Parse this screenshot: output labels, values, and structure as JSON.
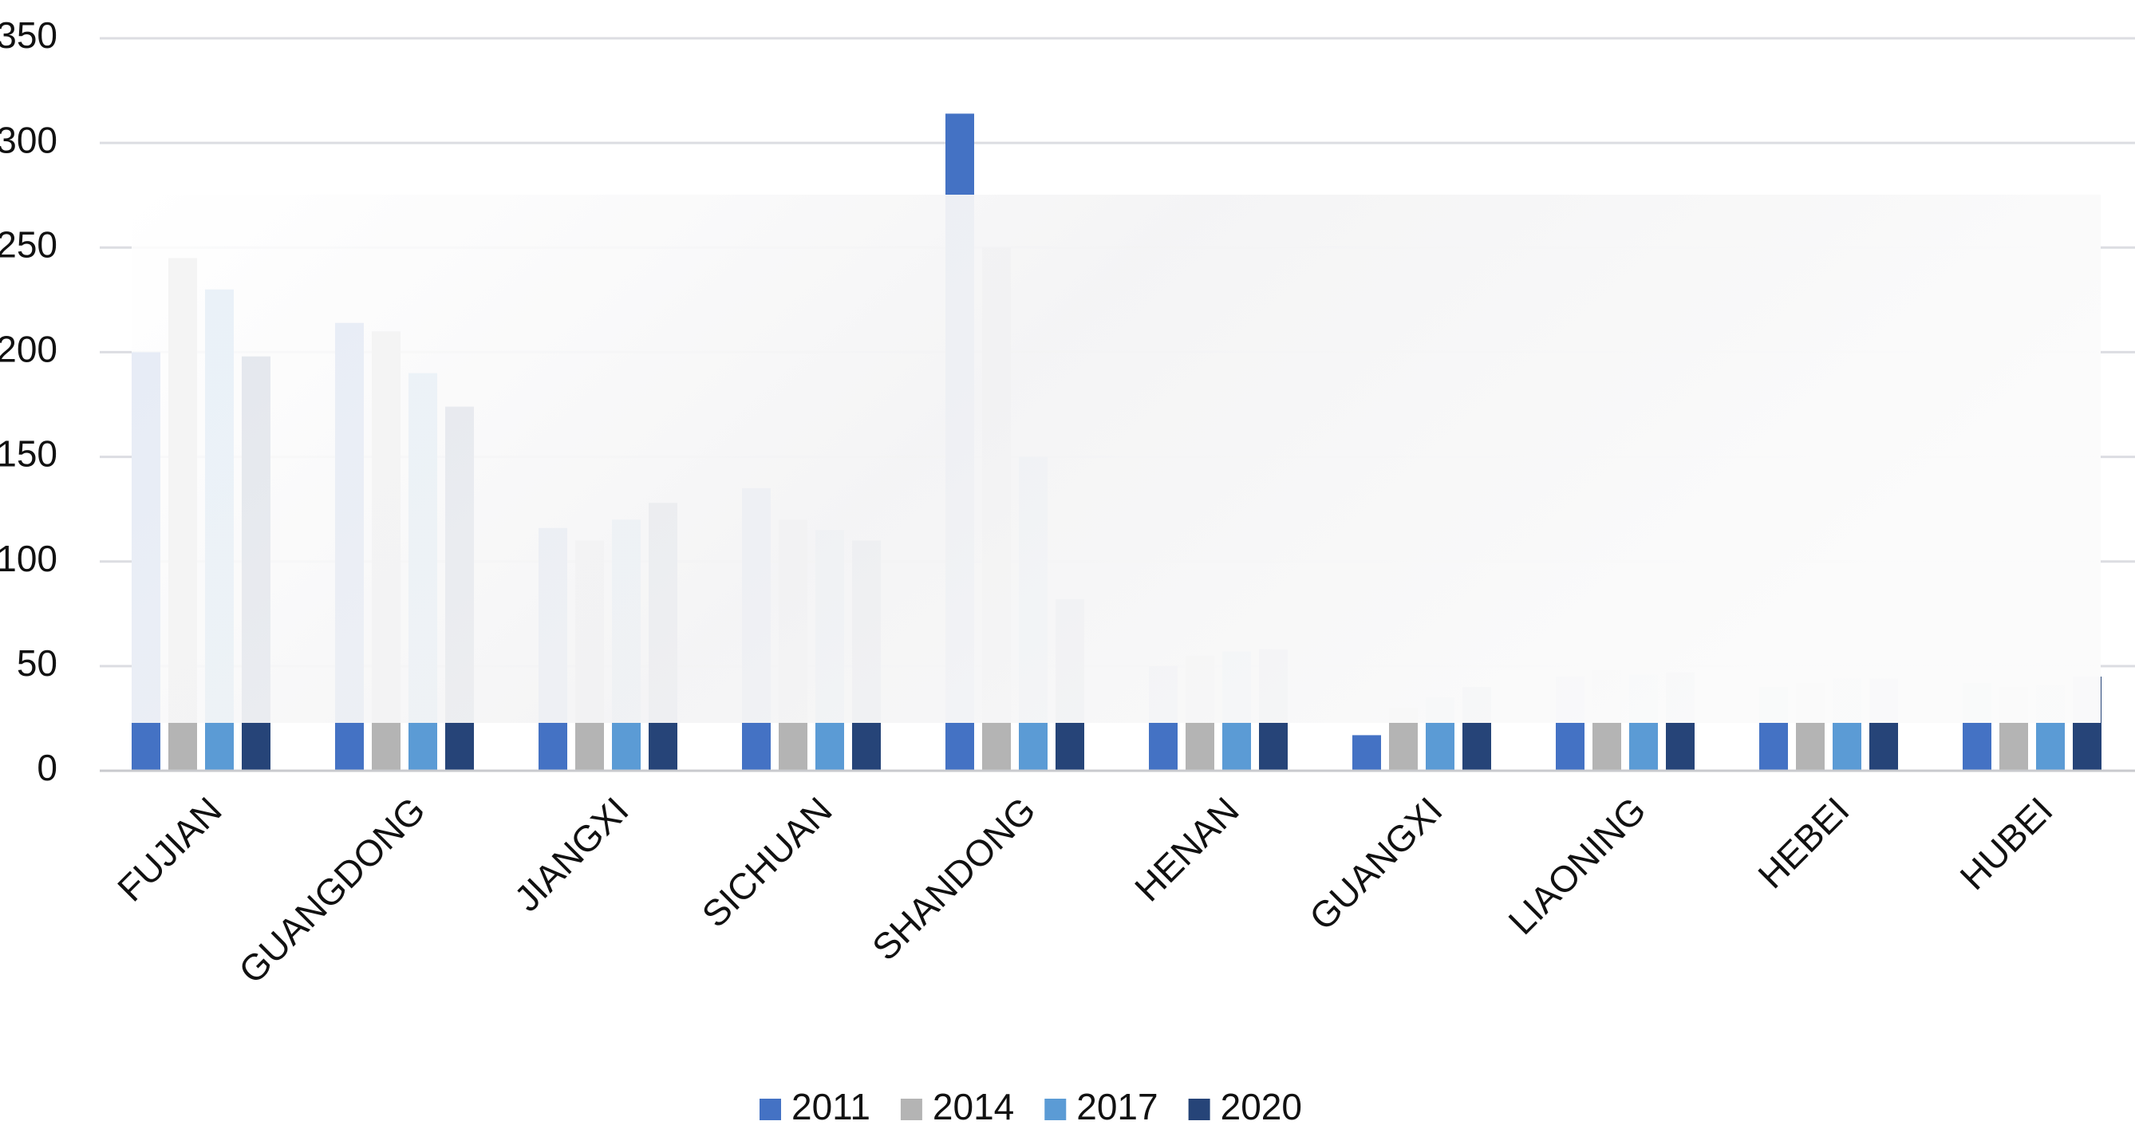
{
  "chart_data": {
    "type": "bar",
    "categories": [
      "FUJIAN",
      "GUANGDONG",
      "JIANGXI",
      "SICHUAN",
      "SHANDONG",
      "HENAN",
      "GUANGXI",
      "LIAONING",
      "HEBEI",
      "HUBEI"
    ],
    "series": [
      {
        "name": "2011",
        "color": "#4472c4",
        "values": [
          200,
          214,
          116,
          135,
          314,
          50,
          17,
          45,
          40,
          42
        ]
      },
      {
        "name": "2014",
        "color": "#b4b4b4",
        "values": [
          245,
          210,
          110,
          120,
          250,
          55,
          30,
          48,
          42,
          40
        ]
      },
      {
        "name": "2017",
        "color": "#5b9bd5",
        "values": [
          230,
          190,
          120,
          115,
          150,
          57,
          35,
          46,
          44,
          41
        ]
      },
      {
        "name": "2020",
        "color": "#264478",
        "values": [
          198,
          174,
          128,
          110,
          82,
          58,
          40,
          47,
          44,
          45
        ]
      }
    ],
    "ylim": [
      0,
      350
    ],
    "yticks": [
      0,
      50,
      100,
      150,
      200,
      250,
      300,
      350
    ],
    "grid": true
  }
}
